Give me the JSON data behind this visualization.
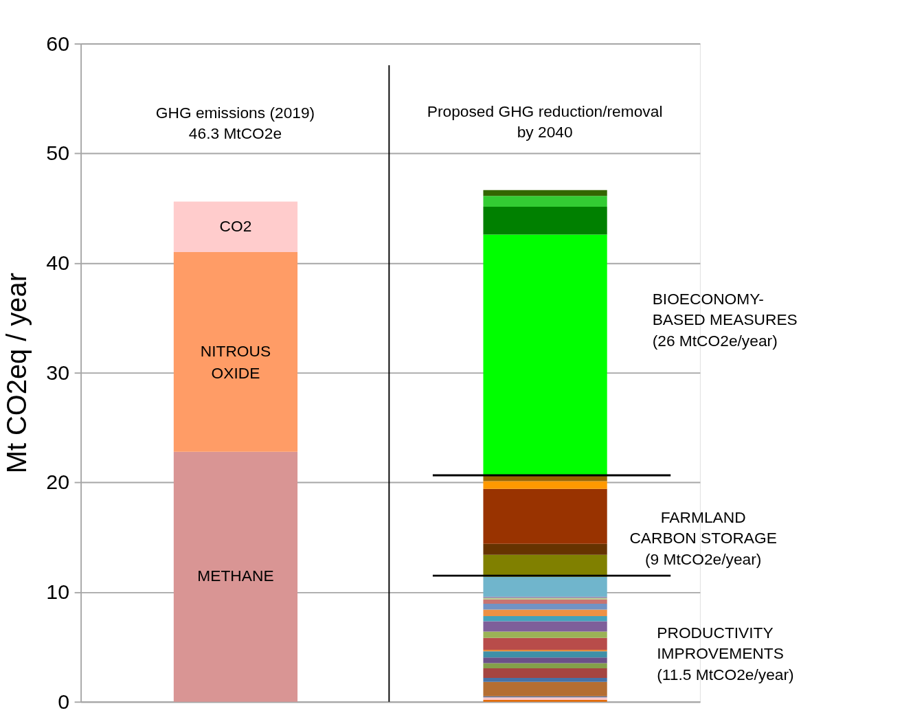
{
  "chart_data": {
    "type": "bar",
    "stacked": true,
    "ylabel": "Mt CO2eq / year",
    "categories": [
      null,
      null
    ],
    "ylim": [
      0,
      60
    ],
    "yticks": [
      0,
      10,
      20,
      30,
      40,
      50,
      60
    ],
    "grid": "y",
    "legend": false,
    "tick_labels": "y",
    "series": [
      {
        "name": "METHANE",
        "color": "#d99594",
        "values": [
          22.8,
          null
        ]
      },
      {
        "name": "NITROUS OXIDE",
        "color": "#ff9c66",
        "values": [
          18.2,
          null
        ]
      },
      {
        "name": "CO2",
        "color": "#ffcccc",
        "values": [
          4.6,
          null
        ]
      },
      {
        "color": "#e36c0a",
        "values": [
          null,
          0.18
        ]
      },
      {
        "color": "#ffc7c7",
        "values": [
          null,
          0.23
        ]
      },
      {
        "color": "#4f6fa0",
        "values": [
          null,
          0.1
        ]
      },
      {
        "color": "#b46e32",
        "values": [
          null,
          1.31
        ]
      },
      {
        "color": "#4572a7",
        "values": [
          null,
          0.36
        ]
      },
      {
        "color": "#a54541",
        "values": [
          null,
          0.88
        ]
      },
      {
        "color": "#84a04a",
        "values": [
          null,
          0.47
        ]
      },
      {
        "color": "#6b5088",
        "values": [
          null,
          0.51
        ]
      },
      {
        "color": "#3e90a8",
        "values": [
          null,
          0.57
        ]
      },
      {
        "color": "#e58a3c",
        "values": [
          null,
          0.14
        ]
      },
      {
        "color": "#b84c4a",
        "values": [
          null,
          1.07
        ]
      },
      {
        "color": "#9bb356",
        "values": [
          null,
          0.59
        ]
      },
      {
        "color": "#7e5f9a",
        "values": [
          null,
          0.94
        ]
      },
      {
        "color": "#45a2bb",
        "values": [
          null,
          0.47
        ]
      },
      {
        "color": "#ee9144",
        "values": [
          null,
          0.59
        ]
      },
      {
        "color": "#7193c5",
        "values": [
          null,
          0.53
        ]
      },
      {
        "color": "#c87471",
        "values": [
          null,
          0.39
        ]
      },
      {
        "color": "#b5c88a",
        "values": [
          null,
          0.14
        ]
      },
      {
        "color": "#8f80ab",
        "values": [
          null,
          0.12
        ]
      },
      {
        "color": "#70b5cc",
        "values": [
          null,
          1.81
        ]
      },
      {
        "color": "#808000",
        "values": [
          null,
          2.01
        ]
      },
      {
        "color": "#663300",
        "values": [
          null,
          1.0
        ]
      },
      {
        "color": "#993300",
        "values": [
          null,
          5.0
        ]
      },
      {
        "color": "#ff9900",
        "values": [
          null,
          0.71
        ]
      },
      {
        "color": "#996600",
        "values": [
          null,
          0.53
        ]
      },
      {
        "color": "#00ff00",
        "values": [
          null,
          21.95
        ]
      },
      {
        "color": "#008000",
        "values": [
          null,
          2.54
        ]
      },
      {
        "color": "#33cc33",
        "values": [
          null,
          0.98
        ]
      },
      {
        "color": "#336600",
        "values": [
          null,
          0.53
        ]
      }
    ],
    "ref_lines": [
      {
        "axis": "y",
        "value": 20.65,
        "color": "#000000"
      },
      {
        "axis": "y",
        "value": 11.5,
        "color": "#000000"
      }
    ],
    "annotations": [
      "GHG emissions (2019)\n46.3 MtCO2e",
      "Proposed GHG reduction/removal\nby 2040",
      "BIOECONOMY-\nBASED MEASURES\n(26 MtCO2e/year)",
      "FARMLAND\nCARBON STORAGE\n(9 MtCO2e/year)",
      "PRODUCTIVITY\nIMPROVEMENTS\n(11.5 MtCO2e/year)"
    ]
  }
}
